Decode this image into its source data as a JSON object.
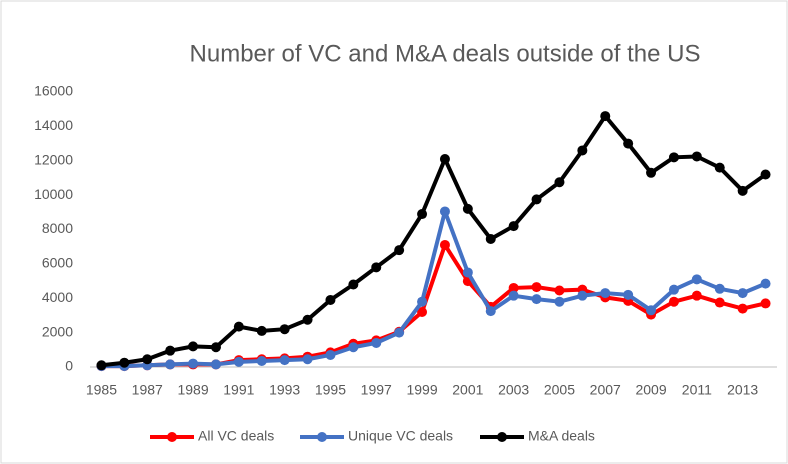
{
  "chart_data": {
    "type": "line",
    "title": "Number of VC and M&A deals outside of the US",
    "categories": [
      "1985",
      null,
      "1987",
      null,
      "1989",
      null,
      "1991",
      null,
      "1993",
      null,
      "1995",
      null,
      "1997",
      null,
      "1999",
      null,
      "2001",
      null,
      "2003",
      null,
      "2005",
      null,
      "2007",
      null,
      "2009",
      null,
      "2011",
      null,
      "2013",
      null
    ],
    "series": [
      {
        "name": "All VC deals",
        "color": "#ff0000",
        "values": [
          50,
          50,
          100,
          150,
          150,
          150,
          400,
          450,
          500,
          600,
          850,
          1350,
          1550,
          2050,
          3200,
          7100,
          5000,
          3500,
          4600,
          4650,
          4450,
          4500,
          4050,
          3850,
          3050,
          3800,
          4150,
          3750,
          3400,
          3700
        ]
      },
      {
        "name": "Unique VC deals",
        "color": "#4472c4",
        "values": [
          50,
          50,
          100,
          150,
          200,
          150,
          300,
          350,
          400,
          450,
          700,
          1150,
          1400,
          2000,
          3800,
          9050,
          5500,
          3250,
          4150,
          3950,
          3800,
          4150,
          4300,
          4200,
          3300,
          4500,
          5100,
          4550,
          4300,
          4850
        ]
      },
      {
        "name": "M&A deals",
        "color": "#000000",
        "values": [
          100,
          250,
          450,
          950,
          1200,
          1150,
          2350,
          2100,
          2200,
          2750,
          3900,
          4800,
          5800,
          6800,
          8900,
          12100,
          9200,
          7450,
          8200,
          9750,
          10750,
          12600,
          14600,
          13000,
          11300,
          12200,
          12250,
          11600,
          10250,
          11200
        ]
      }
    ],
    "ylim": [
      0,
      16000
    ],
    "yticks": [
      0,
      2000,
      4000,
      6000,
      8000,
      10000,
      12000,
      14000,
      16000
    ],
    "grid": false,
    "legend": "bottom"
  }
}
